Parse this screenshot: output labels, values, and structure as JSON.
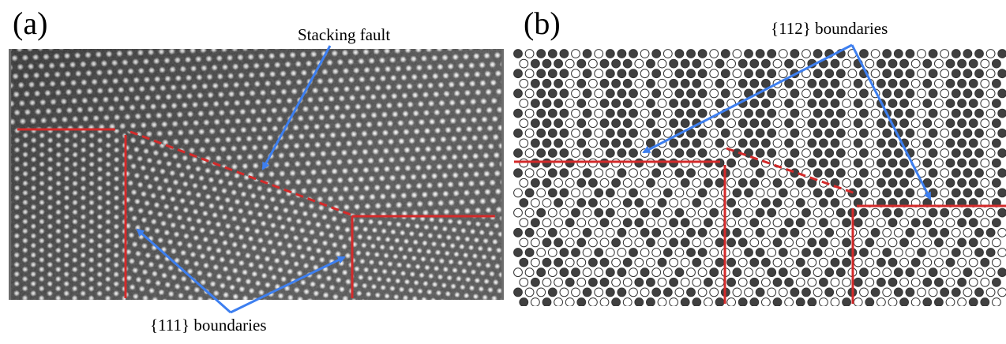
{
  "panel_a": {
    "letter": "(a)",
    "stacking_fault_label": "Stacking fault",
    "boundary_label": "{111} boundaries"
  },
  "panel_b": {
    "letter": "(b)",
    "boundary_label": "{112} boundaries"
  },
  "colors": {
    "boundary_line": "#d42a2a",
    "arrow": "#3d7ff0",
    "atom_dark": "#404040",
    "atom_light": "#ffffff",
    "atom_outline": "#333333"
  }
}
